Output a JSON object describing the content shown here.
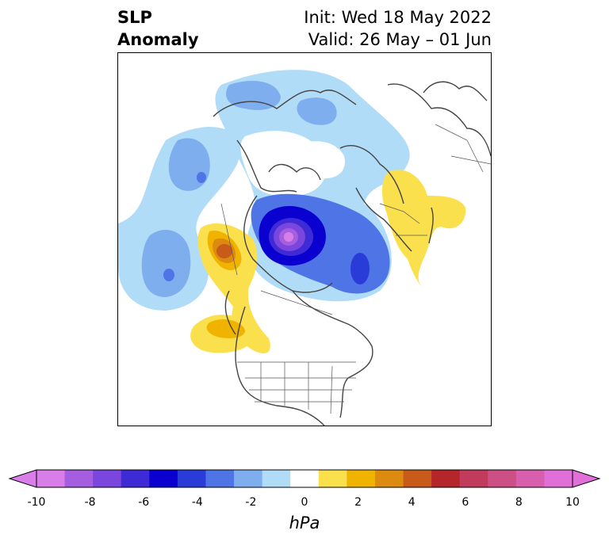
{
  "title": {
    "left_line1": "SLP",
    "left_line2": "Anomaly",
    "right_line1": "Init: Wed 18 May 2022",
    "right_line2": "Valid: 26 May – 01 Jun"
  },
  "colorbar": {
    "label": "hPa",
    "ticks": [
      "-10",
      "-8",
      "-6",
      "-4",
      "-2",
      "0",
      "2",
      "4",
      "6",
      "8",
      "10"
    ],
    "colors": [
      "#d97ee8",
      "#a65ee0",
      "#7a46dd",
      "#3f2bd6",
      "#0a00cf",
      "#2a3cd8",
      "#4f74e6",
      "#7faeef",
      "#b0dcf8",
      "#ffffff",
      "#fbe04e",
      "#f0b400",
      "#dc8b10",
      "#c85a1a",
      "#b4262a",
      "#c13c5c",
      "#cc4f85",
      "#d85fae",
      "#e070d8"
    ],
    "min": -10,
    "max": 10,
    "extend": "both"
  },
  "map": {
    "projection": "polar stereographic (North America / Arctic)",
    "features": [
      {
        "name": "negative anomaly center over Canadian Arctic",
        "level": -10
      },
      {
        "name": "negative anomaly over Greenland/Baffin",
        "level": -6
      },
      {
        "name": "negative anomaly over N. Pacific",
        "level": -4
      },
      {
        "name": "negative anomaly over Siberia/Arctic Ocean",
        "level": -2
      },
      {
        "name": "positive anomaly over Alaska/NW Canada",
        "level": 5
      },
      {
        "name": "positive anomaly over W. US / NE Pacific",
        "level": 2
      },
      {
        "name": "positive anomaly over Scandinavia/W. Russia",
        "level": 1
      }
    ]
  }
}
